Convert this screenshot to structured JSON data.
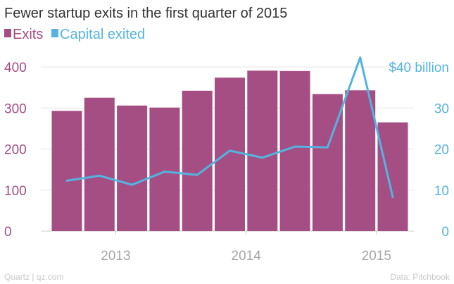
{
  "chart_data": {
    "type": "bar",
    "title": "Fewer startup exits in the first quarter of 2015",
    "legend_position": "top-left",
    "grid": true,
    "x_tick_labels": [
      "2013",
      "2014",
      "2015"
    ],
    "x_tick_at_category": [
      2,
      6,
      10
    ],
    "y_left": {
      "ticks": [
        0,
        100,
        200,
        300,
        400
      ],
      "range": [
        0,
        400
      ]
    },
    "y_right": {
      "ticks": [
        0,
        10,
        20,
        30
      ],
      "top_label": "$40 billion",
      "range": [
        0,
        40
      ]
    },
    "series": [
      {
        "name": "Exits",
        "type": "bar",
        "axis": "left",
        "color": "#a54e83",
        "values": [
          293,
          325,
          306,
          301,
          342,
          374,
          391,
          390,
          334,
          343,
          265
        ]
      },
      {
        "name": "Capital exited",
        "type": "line",
        "axis": "right",
        "color": "#54b3e0",
        "values": [
          12.3,
          13.5,
          11.3,
          14.5,
          13.7,
          19.6,
          17.9,
          20.6,
          20.4,
          42.3,
          8.3
        ]
      }
    ],
    "colors": {
      "title": "#333333",
      "left_axis_text": "#a54e83",
      "right_axis_text": "#54b3e0",
      "x_axis_text": "#a6a6a6",
      "gridline": "#e4e4e4",
      "footer": "#c8c8c8"
    }
  },
  "footer": {
    "source_left": "Quartz | qz.com",
    "source_right": "Data: Pitchbook"
  }
}
